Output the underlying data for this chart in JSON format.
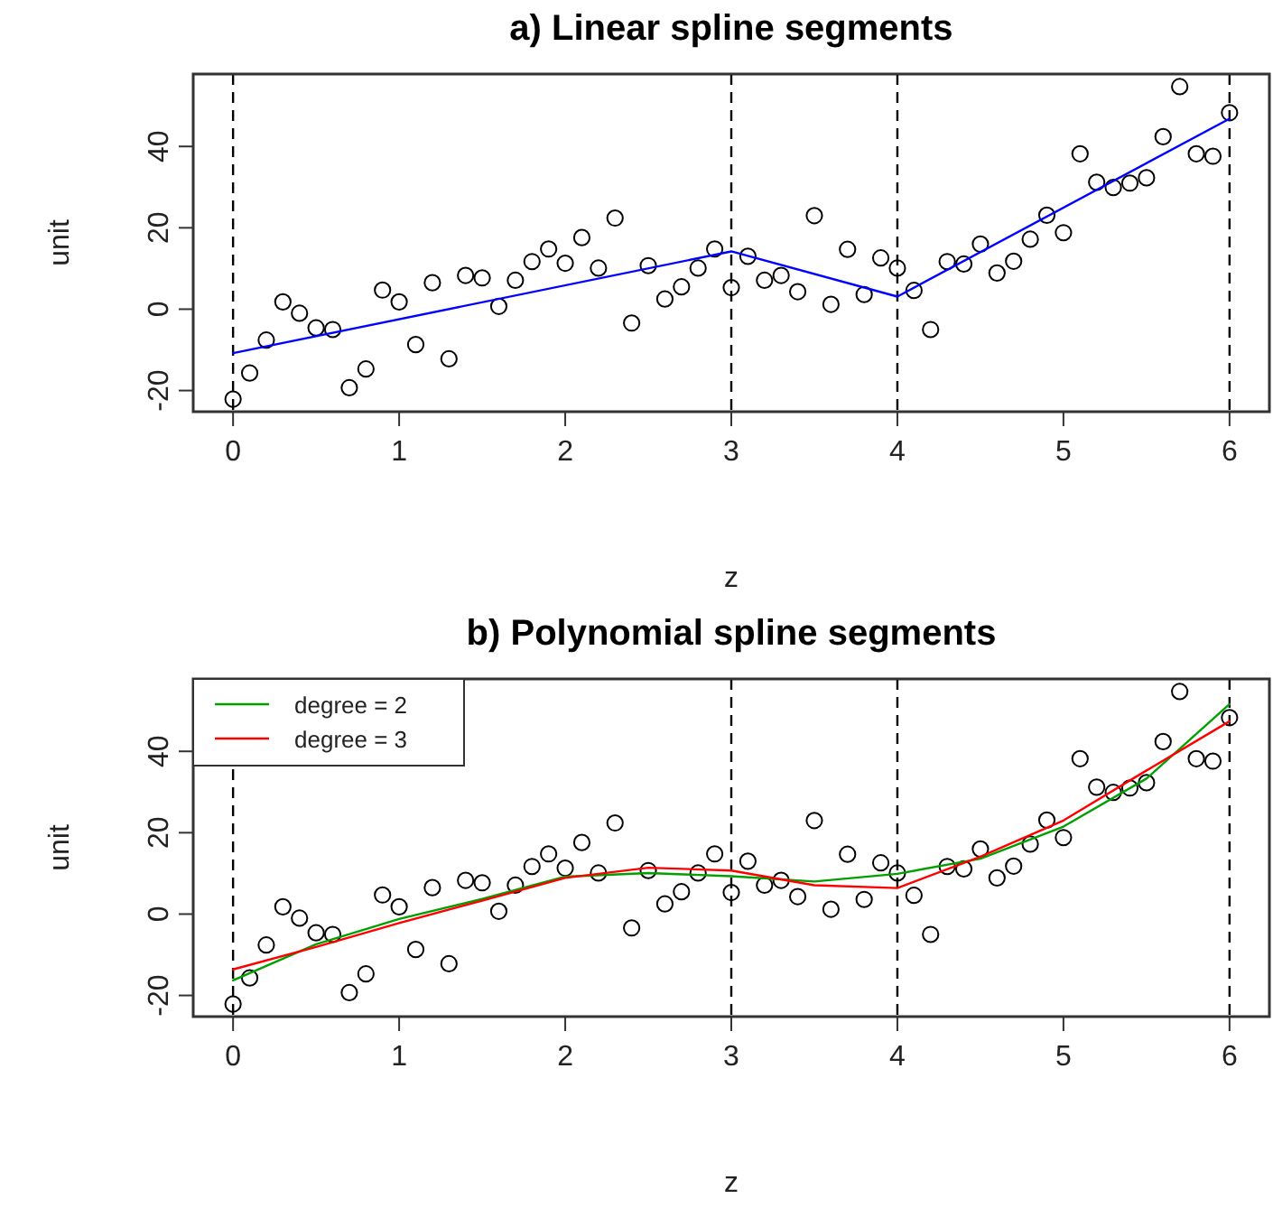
{
  "chart_data": [
    {
      "type": "scatter",
      "title": "a) Linear spline segments",
      "xlabel": "z",
      "ylabel": "unit",
      "xlim": [
        -0.24,
        6.24
      ],
      "ylim": [
        -25.2,
        57.8
      ],
      "xticks": [
        0,
        1,
        2,
        3,
        4,
        5,
        6
      ],
      "yticks": [
        -20,
        0,
        20,
        40
      ],
      "grid": false,
      "legend": false,
      "ref_lines": [
        {
          "axis": "x",
          "value": 0,
          "line_style": "dashed",
          "color": "#000000"
        },
        {
          "axis": "x",
          "value": 3,
          "line_style": "dashed",
          "color": "#000000"
        },
        {
          "axis": "x",
          "value": 4,
          "line_style": "dashed",
          "color": "#000000"
        },
        {
          "axis": "x",
          "value": 6,
          "line_style": "dashed",
          "color": "#000000"
        }
      ],
      "series": [
        {
          "type": "scatter",
          "color": "#000000",
          "marker": "circle",
          "x": [
            0,
            0.1,
            0.2,
            0.3,
            0.4,
            0.5,
            0.6,
            0.7,
            0.8,
            0.9,
            1,
            1.1,
            1.2,
            1.3,
            1.4,
            1.5,
            1.6,
            1.7,
            1.8,
            1.9,
            2,
            2.1,
            2.2,
            2.3,
            2.4,
            2.5,
            2.6,
            2.7,
            2.8,
            2.9,
            3,
            3.1,
            3.2,
            3.3,
            3.4,
            3.5,
            3.6,
            3.7,
            3.8,
            3.9,
            4,
            4.1,
            4.2,
            4.3,
            4.4,
            4.5,
            4.6,
            4.7,
            4.8,
            4.9,
            5,
            5.1,
            5.2,
            5.3,
            5.4,
            5.5,
            5.6,
            5.7,
            5.8,
            5.9,
            6
          ],
          "values": [
            -22.1,
            -15.7,
            -7.6,
            1.8,
            -1,
            -4.6,
            -5,
            -19.3,
            -14.7,
            4.7,
            1.8,
            -8.7,
            6.5,
            -12.2,
            8.3,
            7.7,
            0.7,
            7.1,
            11.7,
            14.8,
            11.3,
            17.6,
            10.1,
            22.4,
            -3.4,
            10.7,
            2.5,
            5.5,
            10.1,
            14.8,
            5.3,
            13,
            7.1,
            8.3,
            4.3,
            23,
            1.2,
            14.7,
            3.6,
            12.6,
            10.1,
            4.6,
            -5,
            11.7,
            11.1,
            16,
            8.9,
            11.8,
            17.2,
            23.1,
            18.8,
            38.2,
            31.2,
            29.9,
            31,
            32.3,
            42.4,
            54.7,
            38.2,
            37.6,
            48.3
          ]
        },
        {
          "type": "line",
          "color": "#0000ff",
          "marker": "none",
          "line_style": "solid",
          "x": [
            0,
            3,
            4,
            6
          ],
          "values": [
            -10.8,
            14.2,
            3.1,
            46.8
          ]
        }
      ]
    },
    {
      "type": "scatter",
      "title": "b) Polynomial spline segments",
      "xlabel": "z",
      "ylabel": "unit",
      "xlim": [
        -0.24,
        6.24
      ],
      "ylim": [
        -25.2,
        57.8
      ],
      "xticks": [
        0,
        1,
        2,
        3,
        4,
        5,
        6
      ],
      "yticks": [
        -20,
        0,
        20,
        40
      ],
      "grid": false,
      "legend": "top left",
      "ref_lines": [
        {
          "axis": "x",
          "value": 0,
          "line_style": "dashed",
          "color": "#000000"
        },
        {
          "axis": "x",
          "value": 3,
          "line_style": "dashed",
          "color": "#000000"
        },
        {
          "axis": "x",
          "value": 4,
          "line_style": "dashed",
          "color": "#000000"
        },
        {
          "axis": "x",
          "value": 6,
          "line_style": "dashed",
          "color": "#000000"
        }
      ],
      "series": [
        {
          "type": "scatter",
          "color": "#000000",
          "marker": "circle",
          "x": [
            0,
            0.1,
            0.2,
            0.3,
            0.4,
            0.5,
            0.6,
            0.7,
            0.8,
            0.9,
            1,
            1.1,
            1.2,
            1.3,
            1.4,
            1.5,
            1.6,
            1.7,
            1.8,
            1.9,
            2,
            2.1,
            2.2,
            2.3,
            2.4,
            2.5,
            2.6,
            2.7,
            2.8,
            2.9,
            3,
            3.1,
            3.2,
            3.3,
            3.4,
            3.5,
            3.6,
            3.7,
            3.8,
            3.9,
            4,
            4.1,
            4.2,
            4.3,
            4.4,
            4.5,
            4.6,
            4.7,
            4.8,
            4.9,
            5,
            5.1,
            5.2,
            5.3,
            5.4,
            5.5,
            5.6,
            5.7,
            5.8,
            5.9,
            6
          ],
          "values": [
            -22.1,
            -15.7,
            -7.6,
            1.8,
            -1,
            -4.6,
            -5,
            -19.3,
            -14.7,
            4.7,
            1.8,
            -8.7,
            6.5,
            -12.2,
            8.3,
            7.7,
            0.7,
            7.1,
            11.7,
            14.8,
            11.3,
            17.6,
            10.1,
            22.4,
            -3.4,
            10.7,
            2.5,
            5.5,
            10.1,
            14.8,
            5.3,
            13,
            7.1,
            8.3,
            4.3,
            23,
            1.2,
            14.7,
            3.6,
            12.6,
            10.1,
            4.6,
            -5,
            11.7,
            11.1,
            16,
            8.9,
            11.8,
            17.2,
            23.1,
            18.8,
            38.2,
            31.2,
            29.9,
            31,
            32.3,
            42.4,
            54.7,
            38.2,
            37.6,
            48.3
          ]
        },
        {
          "type": "line",
          "name": "degree = 2",
          "color": "#00a000",
          "marker": "none",
          "line_style": "solid",
          "x": [
            0,
            0.5,
            1,
            1.5,
            2,
            2.5,
            3,
            3.5,
            4,
            4.5,
            5,
            5.5,
            6
          ],
          "values": [
            -16.3,
            -7.4,
            -1.2,
            3.7,
            9.2,
            10.1,
            9.3,
            8,
            9.9,
            13.6,
            21.5,
            33.3,
            51.6
          ]
        },
        {
          "type": "line",
          "name": "degree = 3",
          "color": "#ff0000",
          "marker": "none",
          "line_style": "solid",
          "x": [
            0,
            0.5,
            1,
            1.5,
            2,
            2.5,
            3,
            3.5,
            4,
            4.5,
            5,
            5.5,
            6
          ],
          "values": [
            -13.6,
            -8.1,
            -2.2,
            3.3,
            8.9,
            11.4,
            10.7,
            7.1,
            6.4,
            14.1,
            23,
            35.3,
            47.4
          ]
        }
      ]
    }
  ]
}
